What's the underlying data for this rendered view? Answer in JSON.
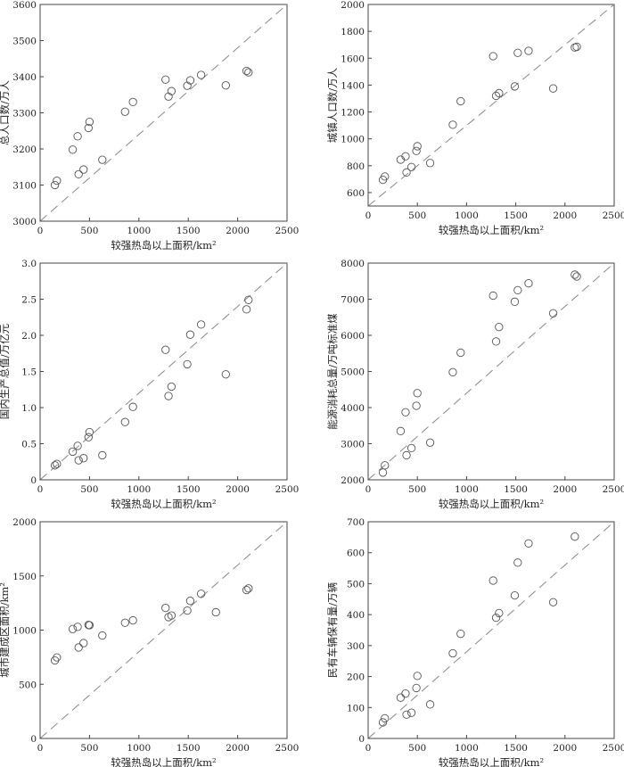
{
  "figure": {
    "background": "#ffffff",
    "axis_color": "#444444",
    "marker_color": "#555555",
    "refline_color": "#888888"
  },
  "chart_data": [
    {
      "type": "scatter",
      "title": "",
      "xlabel": "较强热岛以上面积/km²",
      "ylabel": "总人口数/万人",
      "xlim": [
        0,
        2500
      ],
      "ylim": [
        3000,
        3600
      ],
      "xticks": [
        0,
        500,
        1000,
        1500,
        2000,
        2500
      ],
      "yticks": [
        3000,
        3100,
        3200,
        3300,
        3400,
        3500,
        3600
      ],
      "reference_line": "y=x (dashed diagonal)",
      "points": [
        {
          "x": 150,
          "y": 3100
        },
        {
          "x": 170,
          "y": 3112
        },
        {
          "x": 330,
          "y": 3198
        },
        {
          "x": 380,
          "y": 3235
        },
        {
          "x": 390,
          "y": 3130
        },
        {
          "x": 440,
          "y": 3143
        },
        {
          "x": 490,
          "y": 3258
        },
        {
          "x": 500,
          "y": 3275
        },
        {
          "x": 630,
          "y": 3170
        },
        {
          "x": 860,
          "y": 3303
        },
        {
          "x": 940,
          "y": 3330
        },
        {
          "x": 1270,
          "y": 3392
        },
        {
          "x": 1300,
          "y": 3345
        },
        {
          "x": 1330,
          "y": 3360
        },
        {
          "x": 1490,
          "y": 3375
        },
        {
          "x": 1520,
          "y": 3390
        },
        {
          "x": 1630,
          "y": 3405
        },
        {
          "x": 1880,
          "y": 3376
        },
        {
          "x": 2090,
          "y": 3416
        },
        {
          "x": 2110,
          "y": 3412
        }
      ]
    },
    {
      "type": "scatter",
      "title": "",
      "xlabel": "较强热岛以上面积/km²",
      "ylabel": "城镇人口数/万人",
      "xlim": [
        0,
        2500
      ],
      "ylim": [
        500,
        2000
      ],
      "xticks": [
        0,
        500,
        1000,
        1500,
        2000,
        2500
      ],
      "yticks": [
        600,
        800,
        1000,
        1200,
        1400,
        1600,
        1800,
        2000
      ],
      "reference_line": "y=x (dashed diagonal)",
      "points": [
        {
          "x": 150,
          "y": 695
        },
        {
          "x": 170,
          "y": 720
        },
        {
          "x": 330,
          "y": 845
        },
        {
          "x": 380,
          "y": 870
        },
        {
          "x": 390,
          "y": 750
        },
        {
          "x": 440,
          "y": 790
        },
        {
          "x": 490,
          "y": 910
        },
        {
          "x": 500,
          "y": 945
        },
        {
          "x": 630,
          "y": 820
        },
        {
          "x": 860,
          "y": 1105
        },
        {
          "x": 940,
          "y": 1280
        },
        {
          "x": 1270,
          "y": 1615
        },
        {
          "x": 1300,
          "y": 1320
        },
        {
          "x": 1330,
          "y": 1340
        },
        {
          "x": 1490,
          "y": 1390
        },
        {
          "x": 1520,
          "y": 1640
        },
        {
          "x": 1630,
          "y": 1655
        },
        {
          "x": 1880,
          "y": 1375
        },
        {
          "x": 2100,
          "y": 1680
        },
        {
          "x": 2120,
          "y": 1685
        }
      ]
    },
    {
      "type": "scatter",
      "title": "",
      "xlabel": "较强热岛以上面积/km²",
      "ylabel": "国内生产总值/万亿元",
      "xlim": [
        0,
        2500
      ],
      "ylim": [
        0,
        3.0
      ],
      "xticks": [
        0,
        500,
        1000,
        1500,
        2000,
        2500
      ],
      "yticks": [
        0,
        0.5,
        1.0,
        1.5,
        2.0,
        2.5,
        3.0
      ],
      "ytick_labels": [
        "0",
        "0.5",
        "1.0",
        "1.5",
        "2.0",
        "2.5",
        "3.0"
      ],
      "reference_line": "y=x (dashed diagonal)",
      "points": [
        {
          "x": 150,
          "y": 0.2
        },
        {
          "x": 170,
          "y": 0.22
        },
        {
          "x": 330,
          "y": 0.39
        },
        {
          "x": 380,
          "y": 0.47
        },
        {
          "x": 390,
          "y": 0.27
        },
        {
          "x": 440,
          "y": 0.3
        },
        {
          "x": 490,
          "y": 0.59
        },
        {
          "x": 500,
          "y": 0.66
        },
        {
          "x": 630,
          "y": 0.34
        },
        {
          "x": 860,
          "y": 0.8
        },
        {
          "x": 940,
          "y": 1.01
        },
        {
          "x": 1270,
          "y": 1.8
        },
        {
          "x": 1300,
          "y": 1.16
        },
        {
          "x": 1330,
          "y": 1.29
        },
        {
          "x": 1490,
          "y": 1.6
        },
        {
          "x": 1520,
          "y": 2.01
        },
        {
          "x": 1630,
          "y": 2.15
        },
        {
          "x": 1880,
          "y": 1.46
        },
        {
          "x": 2090,
          "y": 2.36
        },
        {
          "x": 2110,
          "y": 2.49
        }
      ]
    },
    {
      "type": "scatter",
      "title": "",
      "xlabel": "较强热岛以上面积/km²",
      "ylabel": "能源消耗总量/万吨标准煤",
      "xlim": [
        0,
        2500
      ],
      "ylim": [
        2000,
        8000
      ],
      "xticks": [
        0,
        500,
        1000,
        1500,
        2000,
        2500
      ],
      "yticks": [
        2000,
        3000,
        4000,
        5000,
        6000,
        7000,
        8000
      ],
      "reference_line": "y=x (dashed diagonal)",
      "points": [
        {
          "x": 150,
          "y": 2200
        },
        {
          "x": 170,
          "y": 2400
        },
        {
          "x": 330,
          "y": 3350
        },
        {
          "x": 380,
          "y": 3870
        },
        {
          "x": 390,
          "y": 2680
        },
        {
          "x": 440,
          "y": 2880
        },
        {
          "x": 490,
          "y": 4050
        },
        {
          "x": 500,
          "y": 4400
        },
        {
          "x": 630,
          "y": 3030
        },
        {
          "x": 860,
          "y": 4980
        },
        {
          "x": 940,
          "y": 5520
        },
        {
          "x": 1270,
          "y": 7100
        },
        {
          "x": 1300,
          "y": 5830
        },
        {
          "x": 1330,
          "y": 6230
        },
        {
          "x": 1490,
          "y": 6930
        },
        {
          "x": 1520,
          "y": 7250
        },
        {
          "x": 1630,
          "y": 7440
        },
        {
          "x": 1880,
          "y": 6610
        },
        {
          "x": 2100,
          "y": 7680
        },
        {
          "x": 2120,
          "y": 7630
        }
      ]
    },
    {
      "type": "scatter",
      "title": "",
      "xlabel": "较强热岛以上面积/km²",
      "ylabel": "城市建成区面积/km²",
      "xlim": [
        0,
        2500
      ],
      "ylim": [
        0,
        2000
      ],
      "xticks": [
        0,
        500,
        1000,
        1500,
        2000,
        2500
      ],
      "yticks": [
        0,
        500,
        1000,
        1500,
        2000
      ],
      "reference_line": "y=x (dashed diagonal)",
      "points": [
        {
          "x": 150,
          "y": 720
        },
        {
          "x": 170,
          "y": 748
        },
        {
          "x": 330,
          "y": 1010
        },
        {
          "x": 380,
          "y": 1030
        },
        {
          "x": 390,
          "y": 840
        },
        {
          "x": 440,
          "y": 880
        },
        {
          "x": 490,
          "y": 1048
        },
        {
          "x": 500,
          "y": 1045
        },
        {
          "x": 630,
          "y": 950
        },
        {
          "x": 860,
          "y": 1068
        },
        {
          "x": 940,
          "y": 1090
        },
        {
          "x": 1270,
          "y": 1205
        },
        {
          "x": 1300,
          "y": 1120
        },
        {
          "x": 1330,
          "y": 1135
        },
        {
          "x": 1490,
          "y": 1180
        },
        {
          "x": 1520,
          "y": 1270
        },
        {
          "x": 1630,
          "y": 1335
        },
        {
          "x": 1780,
          "y": 1165
        },
        {
          "x": 2090,
          "y": 1370
        },
        {
          "x": 2110,
          "y": 1385
        }
      ]
    },
    {
      "type": "scatter",
      "title": "",
      "xlabel": "较强热岛以上面积/km²",
      "ylabel": "民有车辆保有量/万辆",
      "xlim": [
        0,
        2500
      ],
      "ylim": [
        0,
        700
      ],
      "xticks": [
        0,
        500,
        1000,
        1500,
        2000,
        2500
      ],
      "yticks": [
        0,
        100,
        200,
        300,
        400,
        500,
        600,
        700
      ],
      "reference_line": "y=x (dashed diagonal)",
      "points": [
        {
          "x": 150,
          "y": 52
        },
        {
          "x": 170,
          "y": 65
        },
        {
          "x": 330,
          "y": 132
        },
        {
          "x": 380,
          "y": 145
        },
        {
          "x": 390,
          "y": 77
        },
        {
          "x": 440,
          "y": 83
        },
        {
          "x": 490,
          "y": 163
        },
        {
          "x": 500,
          "y": 202
        },
        {
          "x": 630,
          "y": 110
        },
        {
          "x": 860,
          "y": 275
        },
        {
          "x": 940,
          "y": 338
        },
        {
          "x": 1270,
          "y": 510
        },
        {
          "x": 1300,
          "y": 390
        },
        {
          "x": 1330,
          "y": 405
        },
        {
          "x": 1490,
          "y": 462
        },
        {
          "x": 1520,
          "y": 568
        },
        {
          "x": 1630,
          "y": 630
        },
        {
          "x": 1880,
          "y": 440
        },
        {
          "x": 2100,
          "y": 652
        }
      ]
    }
  ]
}
